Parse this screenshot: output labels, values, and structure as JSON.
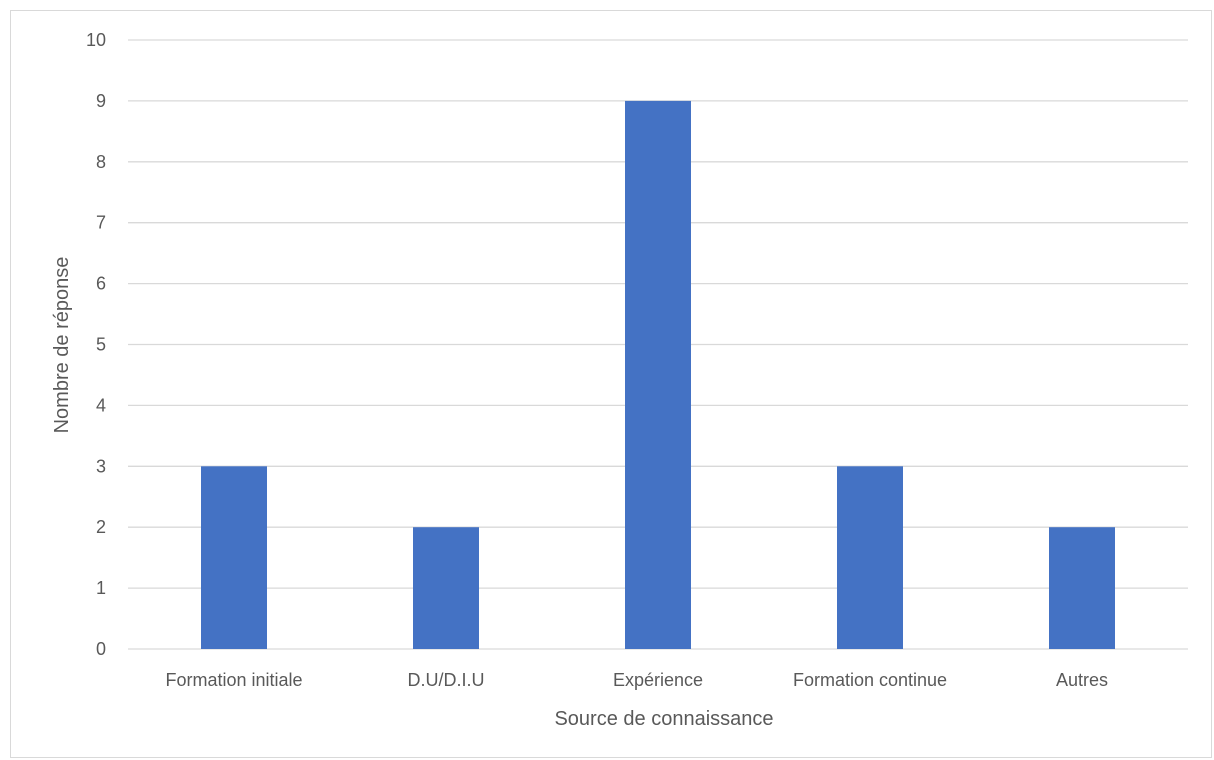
{
  "chart_data": {
    "type": "bar",
    "categories": [
      "Formation initiale",
      "D.U/D.I.U",
      "Expérience",
      "Formation continue",
      "Autres"
    ],
    "values": [
      3,
      2,
      9,
      3,
      2
    ],
    "title": "",
    "xlabel": "Source de connaissance",
    "ylabel": "Nombre de réponse",
    "ylim": [
      0,
      10
    ],
    "yticks": [
      0,
      1,
      2,
      3,
      4,
      5,
      6,
      7,
      8,
      9,
      10
    ],
    "grid": true,
    "legend": "none",
    "bar_color": "#4472c4",
    "grid_color": "#d9d9d9"
  }
}
